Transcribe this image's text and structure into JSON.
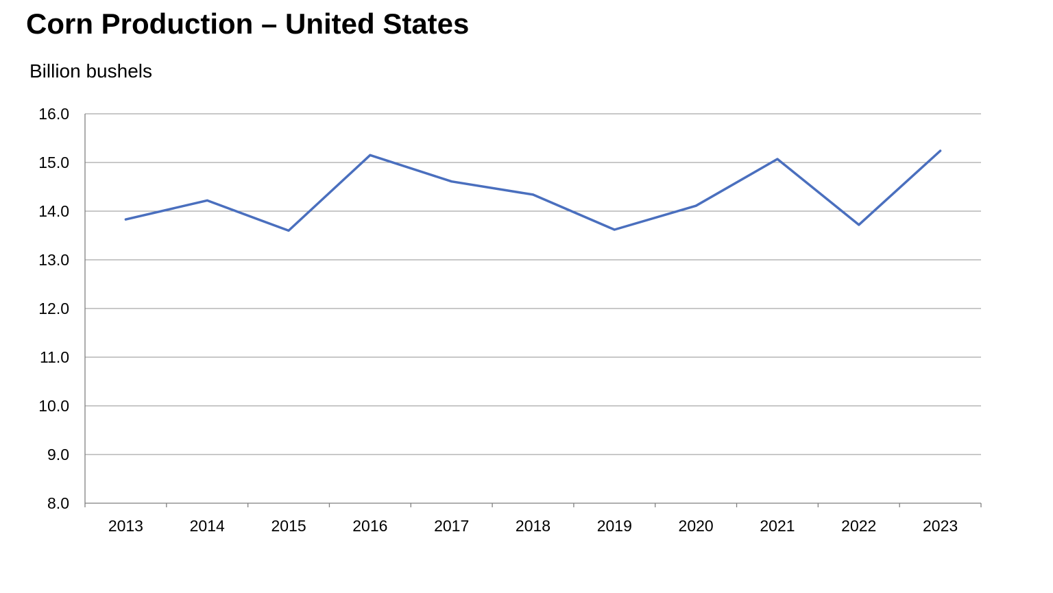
{
  "chart_data": {
    "type": "line",
    "title": "Corn Production – United States",
    "subtitle": "Billion bushels",
    "xlabel": "",
    "ylabel": "",
    "x": [
      "2013",
      "2014",
      "2015",
      "2016",
      "2017",
      "2018",
      "2019",
      "2020",
      "2021",
      "2022",
      "2023"
    ],
    "series": [
      {
        "values": [
          13.83,
          14.22,
          13.6,
          15.15,
          14.61,
          14.34,
          13.62,
          14.11,
          15.07,
          13.72,
          15.24
        ]
      }
    ],
    "ylim": [
      8.0,
      16.0
    ],
    "yticks": [
      "8.0",
      "9.0",
      "10.0",
      "11.0",
      "12.0",
      "13.0",
      "14.0",
      "15.0",
      "16.0"
    ],
    "grid": true,
    "legend": "none",
    "colors": {
      "line": "#4A6FBE",
      "grid": "#A6A6A6",
      "axis": "#7F7F7F"
    }
  }
}
